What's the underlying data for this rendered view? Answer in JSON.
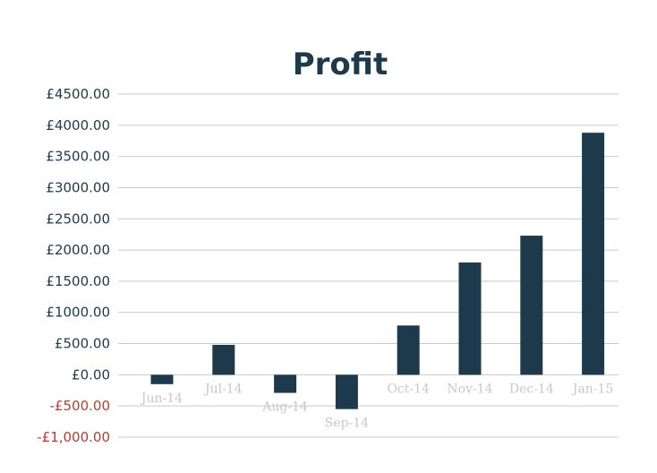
{
  "chart_data": {
    "type": "bar",
    "title": "Profit",
    "xlabel": "",
    "ylabel": "",
    "categories": [
      "Jun-14",
      "Jul-14",
      "Aug-14",
      "Sep-14",
      "Oct-14",
      "Nov-14",
      "Dec-14",
      "Jan-15"
    ],
    "values": [
      -150,
      480,
      -290,
      -550,
      790,
      1800,
      2230,
      3880
    ],
    "ylim": [
      -1000,
      4500
    ],
    "y_ticks": [
      {
        "value": 4500,
        "label": "£4500.00"
      },
      {
        "value": 4000,
        "label": "£4000.00"
      },
      {
        "value": 3500,
        "label": "£3500.00"
      },
      {
        "value": 3000,
        "label": "£3000.00"
      },
      {
        "value": 2500,
        "label": "£2500.00"
      },
      {
        "value": 2000,
        "label": "£2000.00"
      },
      {
        "value": 1500,
        "label": "£1500.00"
      },
      {
        "value": 1000,
        "label": "£1000.00"
      },
      {
        "value": 500,
        "label": "£500.00"
      },
      {
        "value": 0,
        "label": "£0.00"
      },
      {
        "value": -500,
        "label": "-£500.00"
      },
      {
        "value": -1000,
        "label": "-£1,000.00"
      }
    ],
    "grid": true,
    "legend": "none",
    "colors": {
      "bar": "#1c3a4c",
      "title": "#1c3a4c",
      "positive_tick_label": "#1c3a4c",
      "negative_tick_label": "#c0392b",
      "x_tick_label": "#c8c8c8",
      "gridline": "#c9c9c9"
    }
  }
}
